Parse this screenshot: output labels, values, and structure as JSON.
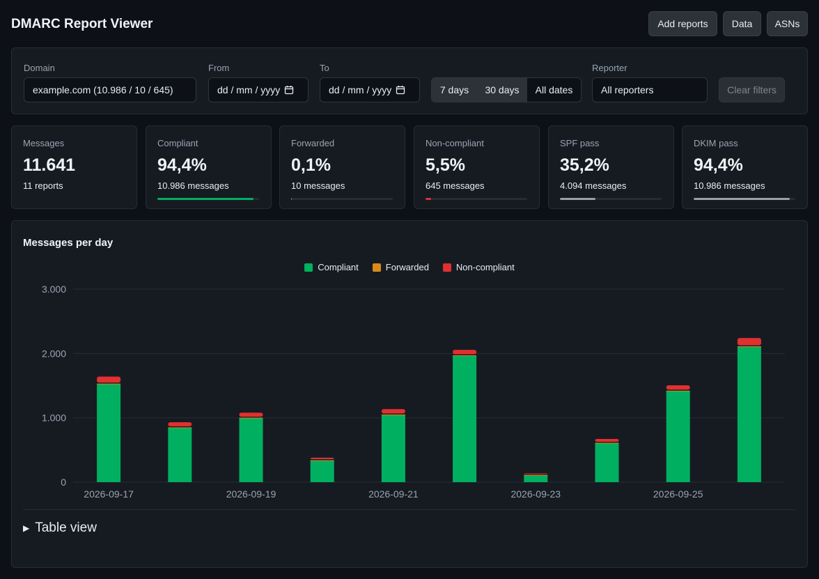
{
  "app": {
    "title": "DMARC Report Viewer"
  },
  "header_buttons": {
    "add_reports": "Add reports",
    "data": "Data",
    "asns": "ASNs"
  },
  "filters": {
    "domain_label": "Domain",
    "domain_value": "example.com (10.986 / 10 / 645)",
    "from_label": "From",
    "from_value": "dd / mm / yyyy",
    "to_label": "To",
    "to_value": "dd / mm / yyyy",
    "ranges": [
      "7 days",
      "30 days",
      "All dates"
    ],
    "reporter_label": "Reporter",
    "reporter_value": "All reporters",
    "clear_label": "Clear filters"
  },
  "stats": [
    {
      "label": "Messages",
      "value": "11.641",
      "sub": "11 reports",
      "bar": null,
      "color": ""
    },
    {
      "label": "Compliant",
      "value": "94,4%",
      "sub": "10.986 messages",
      "bar": 0.944,
      "color": "#00b060"
    },
    {
      "label": "Forwarded",
      "value": "0,1%",
      "sub": "10 messages",
      "bar": 0.001,
      "color": "#d98a1a"
    },
    {
      "label": "Non-compliant",
      "value": "5,5%",
      "sub": "645 messages",
      "bar": 0.055,
      "color": "#e03030"
    },
    {
      "label": "SPF pass",
      "value": "35,2%",
      "sub": "4.094 messages",
      "bar": 0.352,
      "color": "#9aa0a6"
    },
    {
      "label": "DKIM pass",
      "value": "94,4%",
      "sub": "10.986 messages",
      "bar": 0.944,
      "color": "#9aa0a6"
    }
  ],
  "chart_section": {
    "title": "Messages per day",
    "table_toggle": "Table view"
  },
  "chart_data": {
    "type": "bar",
    "stacked": true,
    "categories": [
      "2026-09-17",
      "2026-09-18",
      "2026-09-19",
      "2026-09-20",
      "2026-09-21",
      "2026-09-22",
      "2026-09-23",
      "2026-09-24",
      "2026-09-25",
      "2026-09-26"
    ],
    "x_tick_labels": [
      "2026-09-17",
      "2026-09-19",
      "2026-09-21",
      "2026-09-23",
      "2026-09-25"
    ],
    "series": [
      {
        "name": "Compliant",
        "color": "#00b060",
        "values": [
          1530,
          850,
          1000,
          340,
          1050,
          1970,
          110,
          610,
          1420,
          2110
        ]
      },
      {
        "name": "Forwarded",
        "color": "#d98a1a",
        "values": [
          1,
          1,
          1,
          1,
          1,
          1,
          1,
          1,
          1,
          1
        ]
      },
      {
        "name": "Non-compliant",
        "color": "#e03030",
        "values": [
          110,
          80,
          80,
          40,
          85,
          85,
          25,
          60,
          85,
          130
        ]
      }
    ],
    "y_ticks": [
      "0",
      "1.000",
      "2.000",
      "3.000"
    ],
    "ylim": [
      0,
      3000
    ],
    "grid": true,
    "legend": "top-center",
    "title": "",
    "xlabel": "",
    "ylabel": ""
  }
}
